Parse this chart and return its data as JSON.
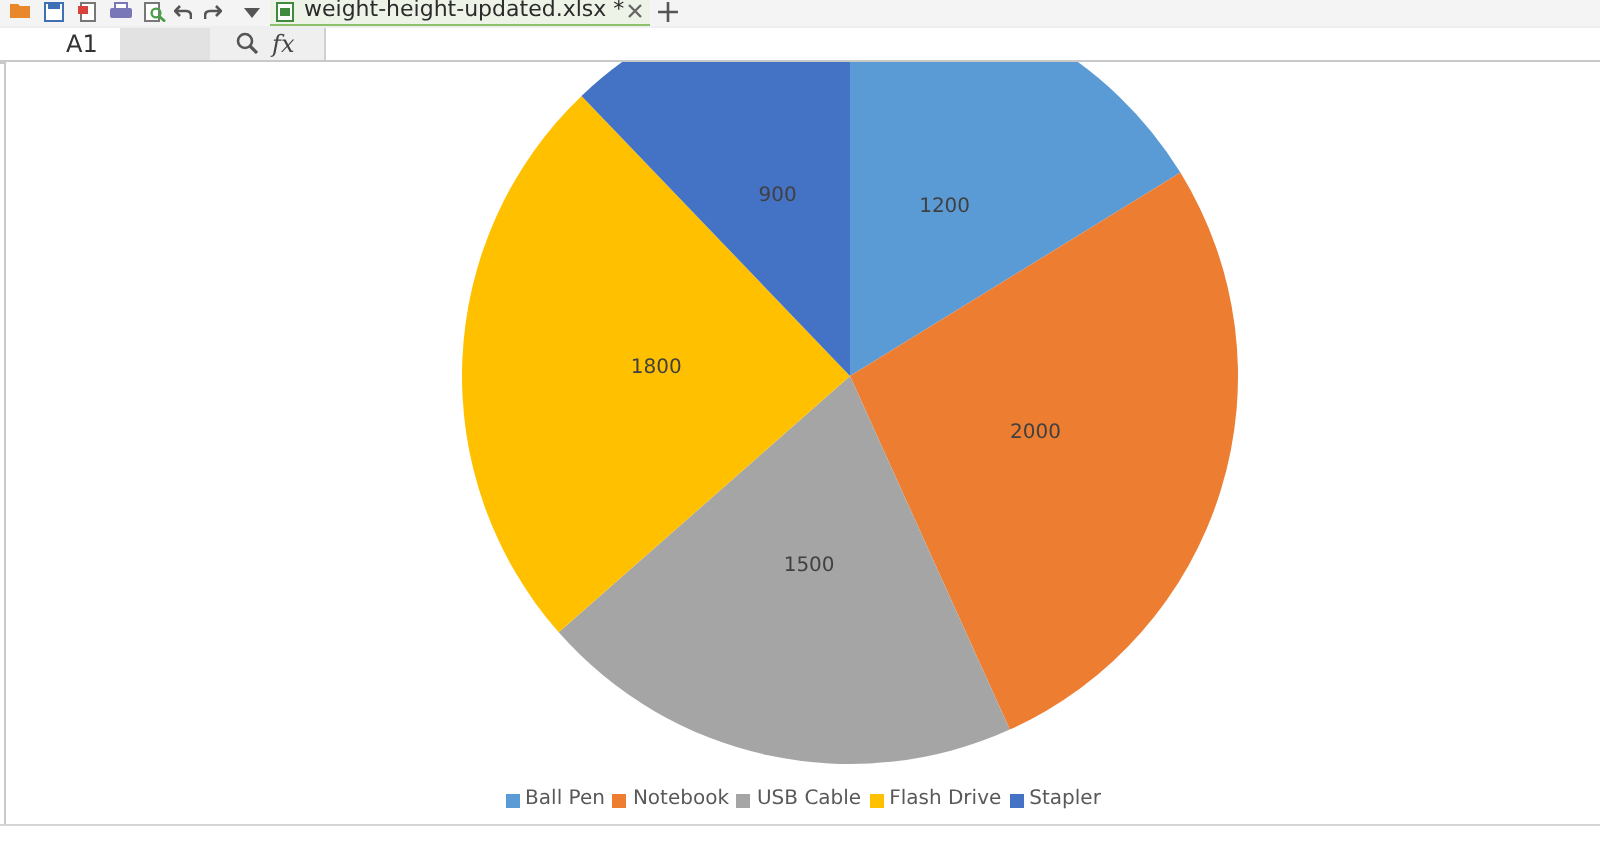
{
  "chart_data": {
    "type": "pie",
    "categories": [
      "Ball Pen",
      "Notebook",
      "USB Cable",
      "Flash Drive",
      "Stapler"
    ],
    "values": [
      1200,
      2000,
      1500,
      1800,
      900
    ],
    "colors": [
      "#5b9bd5",
      "#ed7d31",
      "#a5a5a5",
      "#ffc000",
      "#4472c4"
    ],
    "data_labels": true,
    "legend": "bottom",
    "annotations": [
      "weight-height-updated.xlsx *",
      "A1",
      "fx"
    ]
  }
}
